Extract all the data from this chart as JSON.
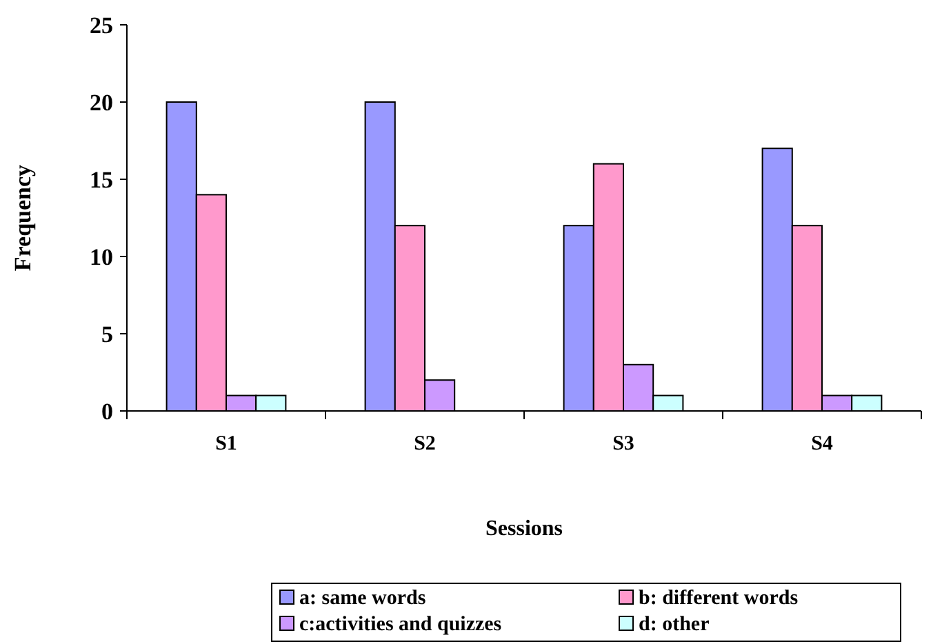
{
  "chart_data": {
    "type": "bar",
    "xlabel": "Sessions",
    "ylabel": "Frequency",
    "categories": [
      "S1",
      "S2",
      "S3",
      "S4"
    ],
    "series": [
      {
        "name": "a: same words",
        "color": "#9999ff",
        "values": [
          20,
          20,
          12,
          17
        ]
      },
      {
        "name": "b: different words",
        "color": "#ff99cc",
        "values": [
          14,
          12,
          16,
          12
        ]
      },
      {
        "name": "c:activities and quizzes",
        "color": "#cc99ff",
        "values": [
          1,
          2,
          3,
          1
        ]
      },
      {
        "name": "d: other",
        "color": "#ccffff",
        "values": [
          1,
          0,
          1,
          1
        ]
      }
    ],
    "ylim": [
      0,
      25
    ],
    "yticks": [
      0,
      5,
      10,
      15,
      20,
      25
    ],
    "grid": false,
    "legend": "bottom"
  }
}
